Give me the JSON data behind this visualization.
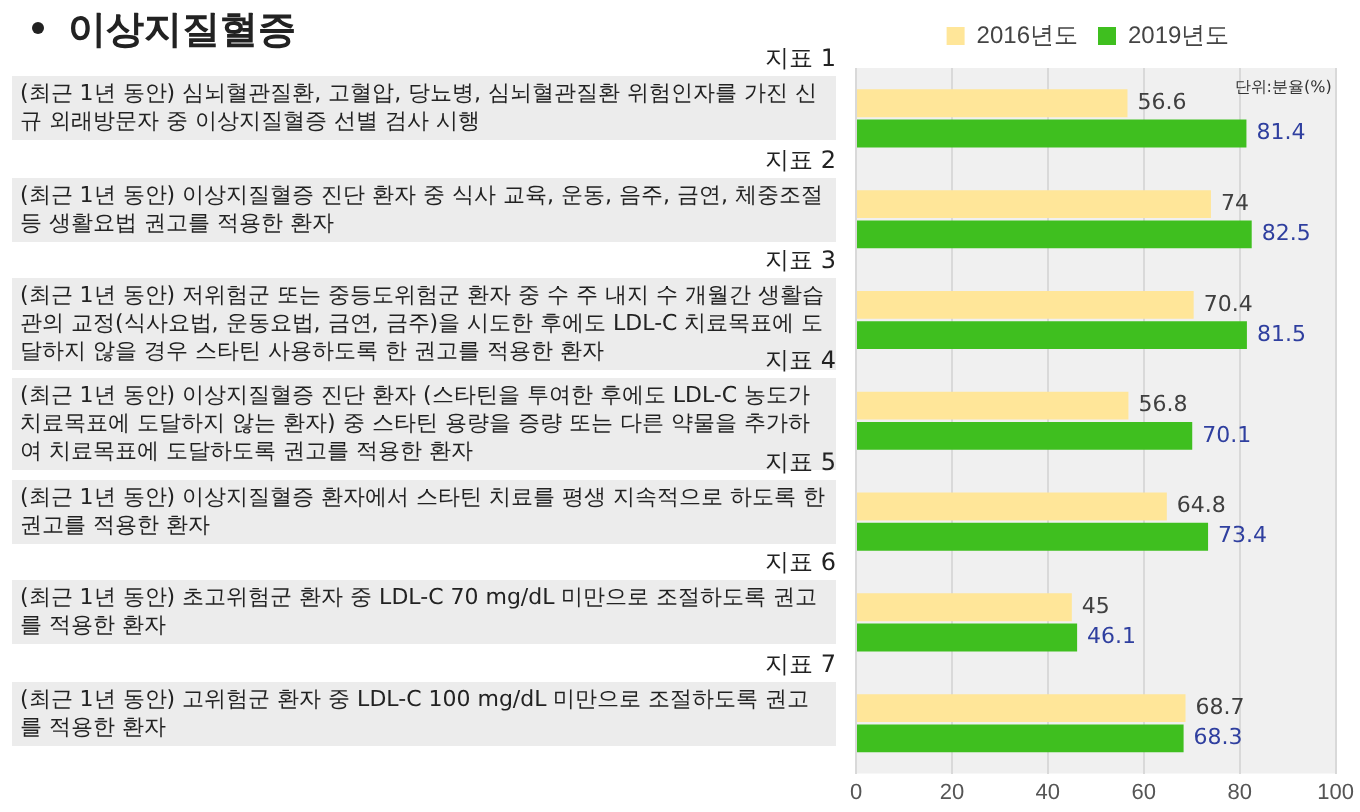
{
  "chart_data": {
    "type": "bar",
    "orientation": "horizontal",
    "title": "이상지질혈증",
    "categories": [
      "지표 1\n(최근 1년 동안) 심뇌혈관질환, 고혈압, 당뇨병, 심뇌혈관질환 위험인자를 가진 신규 외래방문자 중 이상지질혈증 선별 검사 시행",
      "지표 2\n(최근 1년 동안) 이상지질혈증 진단 환자 중 식사 교육, 운동, 음주, 금연, 체중조절 등 생활요법 권고를 적용한 환자",
      "지표 3\n(최근 1년 동안) 저위험군 또는 중등도위험군 환자 중 수 주 내지 수 개월간 생활습관의 교정(식사요법, 운동요법, 금연, 금주)을 시도한 후에도 LDL-C 치료목표에 도달하지 않을 경우 스타틴 사용하도록 한 권고를 적용한 환자",
      "지표 4\n(최근 1년 동안) 이상지질혈증 진단 환자 (스타틴을 투여한 후에도 LDL-C 농도가 치료목표에 도달하지 않는 환자) 중 스타틴 용량을 증량 또는 다른 약물을 추가하여 치료목표에 도달하도록 권고를 적용한 환자",
      "지표 5\n(최근 1년 동안) 이상지질혈증 환자에서 스타틴 치료를 평생 지속적으로 하도록 한 권고를 적용한 환자",
      "지표 6\n(최근 1년 동안) 초고위험군 환자 중 LDL-C 70 mg/dL 미만으로 조절하도록 권고를 적용한 환자",
      "지표 7\n(최근 1년 동안) 고위험군 환자 중 LDL-C 100 mg/dL 미만으로 조절하도록  권고를 적용한 환자"
    ],
    "series": [
      {
        "name": "2016년도",
        "color": "#ffe699",
        "values": [
          56.6,
          74,
          70.4,
          56.8,
          64.8,
          45,
          68.7
        ]
      },
      {
        "name": "2019년도",
        "color": "#3fbf1f",
        "values": [
          81.4,
          82.5,
          81.5,
          70.1,
          73.4,
          46.1,
          68.3
        ]
      }
    ],
    "xlim": [
      0,
      100
    ],
    "xticks": [
      0,
      20,
      40,
      60,
      80,
      100
    ],
    "grid": "x",
    "legend": "top",
    "data_labels": true,
    "annotations": [
      "단위:분율(%)"
    ]
  }
}
